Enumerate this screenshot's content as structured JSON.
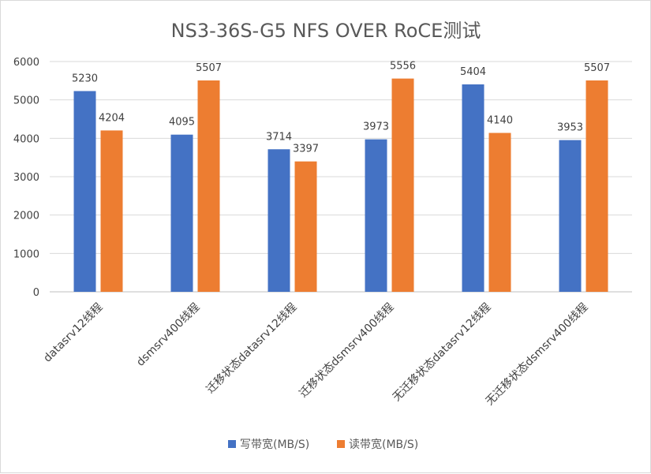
{
  "chart_data": {
    "type": "bar",
    "title": "NS3-36S-G5 NFS OVER RoCE测试",
    "categories": [
      "datasrv12线程",
      "dsmsrv400线程",
      "迁移状态datasrv12线程",
      "迁移状态dsmsrv400线程",
      "无迁移状态datasrv12线程",
      "无迁移状态dsmsrv400线程"
    ],
    "series": [
      {
        "name": "写带宽(MB/S)",
        "color": "#4472C4",
        "values": [
          5230,
          4095,
          3714,
          3973,
          5404,
          3953
        ]
      },
      {
        "name": "读带宽(MB/S)",
        "color": "#ED7D31",
        "values": [
          4204,
          5507,
          3397,
          5556,
          4140,
          5507
        ]
      }
    ],
    "yticks": [
      "0",
      "1000",
      "2000",
      "3000",
      "4000",
      "5000",
      "6000"
    ],
    "ylim": [
      0,
      6000
    ],
    "grid": true,
    "legend_position": "bottom"
  }
}
